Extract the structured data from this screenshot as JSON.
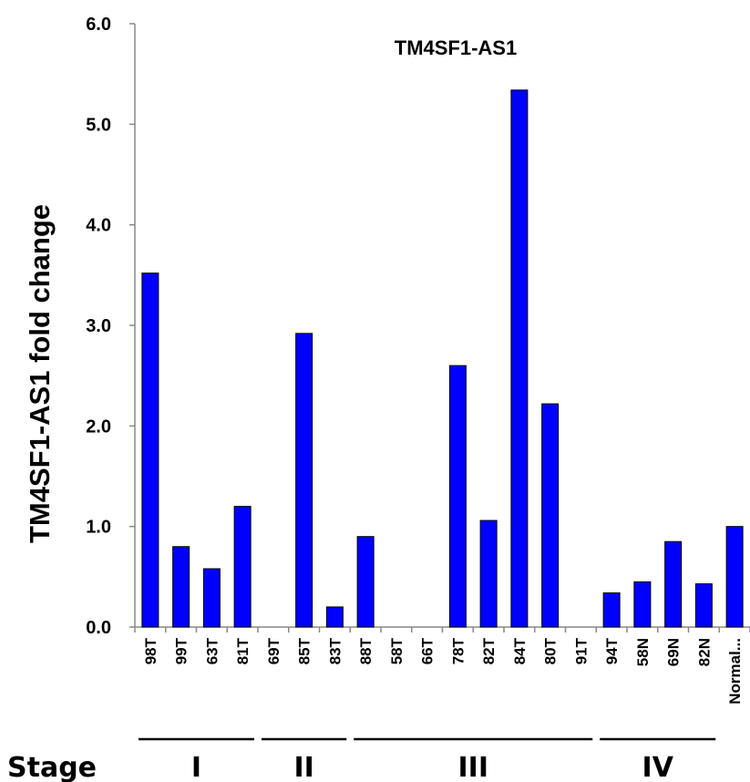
{
  "chart_data": {
    "type": "bar",
    "title": "TM4SF1-AS1",
    "ylabel": "TM4SF1-AS1 fold change",
    "xlabel": "",
    "ylim": [
      0,
      6
    ],
    "yticks": [
      "0.0",
      "1.0",
      "2.0",
      "3.0",
      "4.0",
      "5.0",
      "6.0"
    ],
    "grid": false,
    "bar_color": "#0000ff",
    "categories": [
      "98T",
      "99T",
      "63T",
      "81T",
      "69T",
      "85T",
      "83T",
      "88T",
      "58T",
      "66T",
      "78T",
      "82T",
      "84T",
      "80T",
      "91T",
      "94T",
      "58N",
      "69N",
      "82N",
      "Normal..."
    ],
    "values": [
      3.52,
      0.8,
      0.58,
      1.2,
      0.0,
      2.92,
      0.2,
      0.9,
      0.0,
      0.0,
      2.6,
      1.06,
      5.34,
      2.22,
      0.0,
      0.34,
      0.45,
      0.85,
      0.43,
      1.0
    ],
    "stages": {
      "title": "Stage",
      "groups": [
        {
          "label": "I",
          "start": 0,
          "end": 3
        },
        {
          "label": "II",
          "start": 4,
          "end": 6
        },
        {
          "label": "III",
          "start": 7,
          "end": 14
        },
        {
          "label": "IV",
          "start": 15,
          "end": 18
        }
      ]
    }
  }
}
